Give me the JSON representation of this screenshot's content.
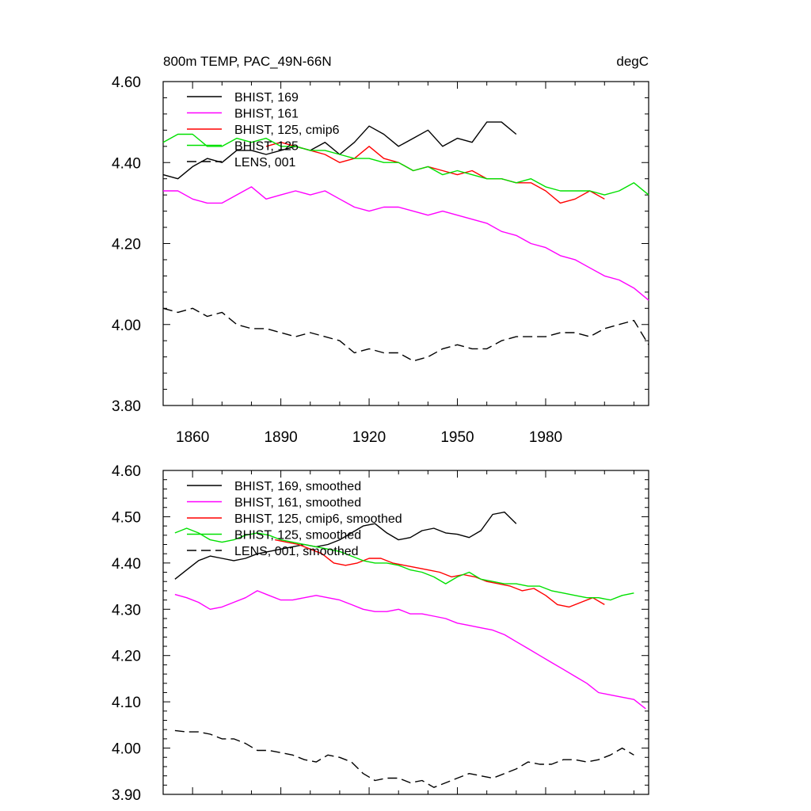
{
  "chart_data": [
    {
      "type": "line",
      "title_left": "800m TEMP, PAC_49N-66N",
      "title_right": "degC",
      "xlim": [
        1850,
        2015
      ],
      "ylim": [
        3.8,
        4.6
      ],
      "x_ticks": [
        1860,
        1890,
        1920,
        1950,
        1980
      ],
      "y_ticks": [
        "3.80",
        "4.00",
        "4.20",
        "4.40",
        "4.60"
      ],
      "show_x_labels": true,
      "legend_position": "top-left",
      "series": [
        {
          "name": "BHIST, 169",
          "color": "#000000",
          "dash": "solid",
          "x": [
            1850,
            1855,
            1860,
            1865,
            1870,
            1875,
            1880,
            1885,
            1890,
            1895,
            1900,
            1905,
            1910,
            1915,
            1920,
            1925,
            1930,
            1935,
            1940,
            1945,
            1950,
            1955,
            1960,
            1965,
            1970
          ],
          "y": [
            4.37,
            4.36,
            4.39,
            4.41,
            4.4,
            4.43,
            4.43,
            4.42,
            4.43,
            4.44,
            4.43,
            4.45,
            4.42,
            4.45,
            4.49,
            4.47,
            4.44,
            4.46,
            4.48,
            4.44,
            4.46,
            4.45,
            4.5,
            4.5,
            4.47
          ]
        },
        {
          "name": "BHIST, 161",
          "color": "#ff00ff",
          "dash": "solid",
          "x": [
            1850,
            1855,
            1860,
            1865,
            1870,
            1875,
            1880,
            1885,
            1890,
            1895,
            1900,
            1905,
            1910,
            1915,
            1920,
            1925,
            1930,
            1935,
            1940,
            1945,
            1950,
            1955,
            1960,
            1965,
            1970,
            1975,
            1980,
            1985,
            1990,
            1995,
            2000,
            2005,
            2010,
            2015
          ],
          "y": [
            4.33,
            4.33,
            4.31,
            4.3,
            4.3,
            4.32,
            4.34,
            4.31,
            4.32,
            4.33,
            4.32,
            4.33,
            4.31,
            4.29,
            4.28,
            4.29,
            4.29,
            4.28,
            4.27,
            4.28,
            4.27,
            4.26,
            4.25,
            4.23,
            4.22,
            4.2,
            4.19,
            4.17,
            4.16,
            4.14,
            4.12,
            4.11,
            4.09,
            4.06
          ]
        },
        {
          "name": "BHIST, 125, cmip6",
          "color": "#ff0000",
          "dash": "solid",
          "x": [
            1885,
            1890,
            1895,
            1900,
            1905,
            1910,
            1915,
            1920,
            1925,
            1930,
            1935,
            1940,
            1945,
            1950,
            1955,
            1960,
            1965,
            1970,
            1975,
            1980,
            1985,
            1990,
            1995,
            2000
          ],
          "y": [
            4.44,
            4.45,
            4.44,
            4.43,
            4.42,
            4.4,
            4.41,
            4.44,
            4.41,
            4.4,
            4.38,
            4.39,
            4.38,
            4.37,
            4.38,
            4.36,
            4.36,
            4.35,
            4.35,
            4.33,
            4.3,
            4.31,
            4.33,
            4.31
          ]
        },
        {
          "name": "BHIST, 125",
          "color": "#00e000",
          "dash": "solid",
          "x": [
            1850,
            1855,
            1860,
            1865,
            1870,
            1875,
            1880,
            1885,
            1890,
            1895,
            1900,
            1905,
            1910,
            1915,
            1920,
            1925,
            1930,
            1935,
            1940,
            1945,
            1950,
            1955,
            1960,
            1965,
            1970,
            1975,
            1980,
            1985,
            1990,
            1995,
            2000,
            2005,
            2010,
            2015
          ],
          "y": [
            4.45,
            4.47,
            4.47,
            4.44,
            4.44,
            4.46,
            4.45,
            4.46,
            4.44,
            4.44,
            4.43,
            4.43,
            4.42,
            4.41,
            4.41,
            4.4,
            4.4,
            4.38,
            4.39,
            4.37,
            4.38,
            4.37,
            4.36,
            4.36,
            4.35,
            4.36,
            4.34,
            4.33,
            4.33,
            4.33,
            4.32,
            4.33,
            4.35,
            4.32
          ]
        },
        {
          "name": "LENS, 001",
          "color": "#000000",
          "dash": "dashed",
          "x": [
            1850,
            1855,
            1860,
            1865,
            1870,
            1875,
            1880,
            1885,
            1890,
            1895,
            1900,
            1905,
            1910,
            1915,
            1920,
            1925,
            1930,
            1935,
            1940,
            1945,
            1950,
            1955,
            1960,
            1965,
            1970,
            1975,
            1980,
            1985,
            1990,
            1995,
            2000,
            2005,
            2010,
            2015
          ],
          "y": [
            4.04,
            4.03,
            4.04,
            4.02,
            4.03,
            4.0,
            3.99,
            3.99,
            3.98,
            3.97,
            3.98,
            3.97,
            3.96,
            3.93,
            3.94,
            3.93,
            3.93,
            3.91,
            3.92,
            3.94,
            3.95,
            3.94,
            3.94,
            3.96,
            3.97,
            3.97,
            3.97,
            3.98,
            3.98,
            3.97,
            3.99,
            4.0,
            4.01,
            3.95
          ]
        }
      ]
    },
    {
      "type": "line",
      "xlim": [
        1850,
        2015
      ],
      "ylim": [
        3.9,
        4.6
      ],
      "x_ticks": [
        1860,
        1890,
        1920,
        1950,
        1980
      ],
      "y_ticks": [
        "3.90",
        "4.00",
        "4.10",
        "4.20",
        "4.30",
        "4.40",
        "4.50",
        "4.60"
      ],
      "show_x_labels": false,
      "legend_position": "top-left",
      "series": [
        {
          "name": "BHIST, 169, smoothed",
          "color": "#000000",
          "dash": "solid",
          "x": [
            1854,
            1858,
            1862,
            1866,
            1870,
            1874,
            1878,
            1882,
            1886,
            1890,
            1894,
            1898,
            1902,
            1906,
            1910,
            1914,
            1918,
            1922,
            1926,
            1930,
            1934,
            1938,
            1942,
            1946,
            1950,
            1954,
            1958,
            1962,
            1966,
            1970
          ],
          "y": [
            4.365,
            4.385,
            4.405,
            4.415,
            4.41,
            4.405,
            4.41,
            4.42,
            4.425,
            4.43,
            4.435,
            4.44,
            4.435,
            4.44,
            4.45,
            4.465,
            4.48,
            4.485,
            4.465,
            4.45,
            4.455,
            4.47,
            4.475,
            4.465,
            4.462,
            4.455,
            4.47,
            4.505,
            4.51,
            4.485
          ]
        },
        {
          "name": "BHIST, 161, smoothed",
          "color": "#ff00ff",
          "dash": "solid",
          "x": [
            1854,
            1858,
            1862,
            1866,
            1870,
            1874,
            1878,
            1882,
            1886,
            1890,
            1894,
            1898,
            1902,
            1906,
            1910,
            1914,
            1918,
            1922,
            1926,
            1930,
            1934,
            1938,
            1942,
            1946,
            1950,
            1954,
            1958,
            1962,
            1966,
            1970,
            1974,
            1978,
            1982,
            1986,
            1990,
            1994,
            1998,
            2002,
            2006,
            2010,
            2014
          ],
          "y": [
            4.332,
            4.325,
            4.315,
            4.3,
            4.305,
            4.315,
            4.325,
            4.34,
            4.33,
            4.32,
            4.32,
            4.325,
            4.33,
            4.325,
            4.32,
            4.31,
            4.3,
            4.295,
            4.295,
            4.3,
            4.29,
            4.29,
            4.285,
            4.28,
            4.27,
            4.265,
            4.26,
            4.255,
            4.245,
            4.23,
            4.215,
            4.2,
            4.185,
            4.17,
            4.155,
            4.14,
            4.12,
            4.115,
            4.11,
            4.105,
            4.085
          ]
        },
        {
          "name": "BHIST, 125, cmip6, smoothed",
          "color": "#ff0000",
          "dash": "solid",
          "x": [
            1888,
            1892,
            1896,
            1900,
            1904,
            1908,
            1912,
            1916,
            1920,
            1924,
            1928,
            1932,
            1936,
            1940,
            1944,
            1948,
            1952,
            1956,
            1960,
            1964,
            1968,
            1972,
            1976,
            1980,
            1984,
            1988,
            1992,
            1996,
            2000
          ],
          "y": [
            4.45,
            4.445,
            4.44,
            4.43,
            4.42,
            4.4,
            4.395,
            4.4,
            4.41,
            4.41,
            4.4,
            4.395,
            4.39,
            4.385,
            4.38,
            4.37,
            4.375,
            4.37,
            4.36,
            4.355,
            4.35,
            4.34,
            4.345,
            4.33,
            4.31,
            4.305,
            4.315,
            4.325,
            4.31
          ]
        },
        {
          "name": "BHIST, 125, smoothed",
          "color": "#00e000",
          "dash": "solid",
          "x": [
            1854,
            1858,
            1862,
            1866,
            1870,
            1874,
            1878,
            1882,
            1886,
            1890,
            1894,
            1898,
            1902,
            1906,
            1910,
            1914,
            1918,
            1922,
            1926,
            1930,
            1934,
            1938,
            1942,
            1946,
            1950,
            1954,
            1958,
            1962,
            1966,
            1970,
            1974,
            1978,
            1982,
            1986,
            1990,
            1994,
            1998,
            2002,
            2006,
            2010
          ],
          "y": [
            4.465,
            4.475,
            4.465,
            4.45,
            4.445,
            4.45,
            4.46,
            4.465,
            4.46,
            4.45,
            4.445,
            4.44,
            4.435,
            4.43,
            4.425,
            4.415,
            4.405,
            4.4,
            4.4,
            4.395,
            4.385,
            4.38,
            4.37,
            4.355,
            4.37,
            4.38,
            4.365,
            4.36,
            4.355,
            4.355,
            4.35,
            4.35,
            4.34,
            4.335,
            4.33,
            4.325,
            4.325,
            4.32,
            4.33,
            4.335
          ]
        },
        {
          "name": "LENS, 001, smoothed",
          "color": "#000000",
          "dash": "dashed",
          "x": [
            1854,
            1858,
            1862,
            1866,
            1870,
            1874,
            1878,
            1882,
            1886,
            1890,
            1894,
            1898,
            1902,
            1906,
            1910,
            1914,
            1918,
            1922,
            1926,
            1930,
            1934,
            1938,
            1942,
            1946,
            1950,
            1954,
            1958,
            1962,
            1966,
            1970,
            1974,
            1978,
            1982,
            1986,
            1990,
            1994,
            1998,
            2002,
            2006,
            2010
          ],
          "y": [
            4.038,
            4.035,
            4.035,
            4.03,
            4.02,
            4.02,
            4.01,
            3.995,
            3.995,
            3.99,
            3.985,
            3.975,
            3.97,
            3.985,
            3.98,
            3.97,
            3.945,
            3.93,
            3.935,
            3.935,
            3.925,
            3.93,
            3.915,
            3.925,
            3.935,
            3.945,
            3.94,
            3.935,
            3.945,
            3.955,
            3.97,
            3.965,
            3.965,
            3.975,
            3.975,
            3.97,
            3.975,
            3.985,
            4.0,
            3.985
          ]
        }
      ]
    }
  ]
}
